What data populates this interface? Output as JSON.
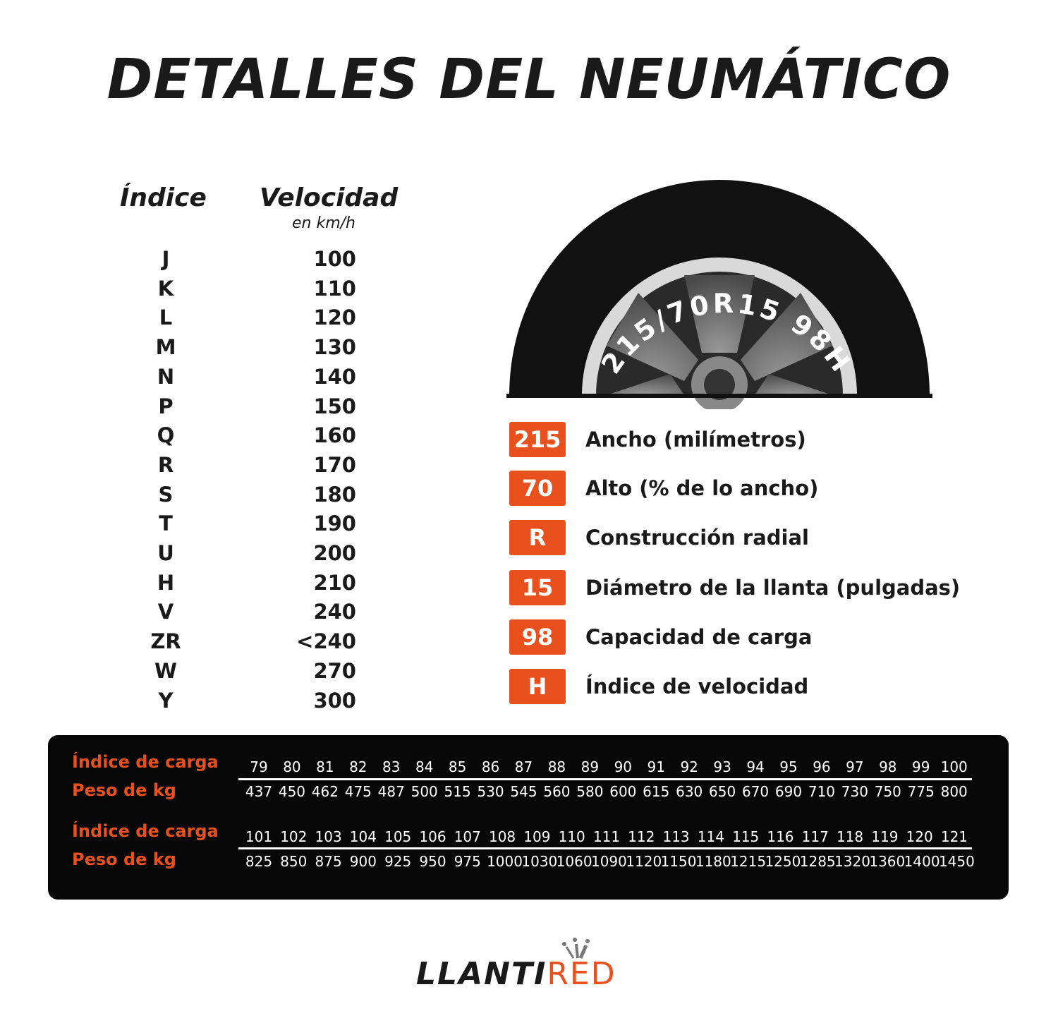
{
  "title": "DETALLES DEL NEUMÁTICO",
  "speed_table": {
    "header_index": "Índice",
    "header_speed": "Velocidad",
    "header_unit": "en km/h",
    "rows": [
      {
        "index": "J",
        "speed": "100"
      },
      {
        "index": "K",
        "speed": "110"
      },
      {
        "index": "L",
        "speed": "120"
      },
      {
        "index": "M",
        "speed": "130"
      },
      {
        "index": "N",
        "speed": "140"
      },
      {
        "index": "P",
        "speed": "150"
      },
      {
        "index": "Q",
        "speed": "160"
      },
      {
        "index": "R",
        "speed": "170"
      },
      {
        "index": "S",
        "speed": "180"
      },
      {
        "index": "T",
        "speed": "190"
      },
      {
        "index": "U",
        "speed": "200"
      },
      {
        "index": "H",
        "speed": "210"
      },
      {
        "index": "V",
        "speed": "240"
      },
      {
        "index": "ZR",
        "speed": "<240"
      },
      {
        "index": "W",
        "speed": "270"
      },
      {
        "index": "Y",
        "speed": "300"
      }
    ]
  },
  "tire": {
    "sidewall_text": "215/70R15 98H"
  },
  "legend": [
    {
      "badge": "215",
      "label": "Ancho (milímetros)"
    },
    {
      "badge": "70",
      "label": "Alto (% de lo ancho)"
    },
    {
      "badge": "R",
      "label": "Construcción radial"
    },
    {
      "badge": "15",
      "label": "Diámetro de la llanta (pulgadas)"
    },
    {
      "badge": "98",
      "label": "Capacidad de carga"
    },
    {
      "badge": "H",
      "label": "Índice de velocidad"
    }
  ],
  "load_table": {
    "label_index": "Índice de carga",
    "label_weight": "Peso de kg",
    "block1": {
      "index": [
        "79",
        "80",
        "81",
        "82",
        "83",
        "84",
        "85",
        "86",
        "87",
        "88",
        "89",
        "90",
        "91",
        "92",
        "93",
        "94",
        "95",
        "96",
        "97",
        "98",
        "99",
        "100"
      ],
      "weight": [
        "437",
        "450",
        "462",
        "475",
        "487",
        "500",
        "515",
        "530",
        "545",
        "560",
        "580",
        "600",
        "615",
        "630",
        "650",
        "670",
        "690",
        "710",
        "730",
        "750",
        "775",
        "800"
      ]
    },
    "block2": {
      "index": [
        "101",
        "102",
        "103",
        "104",
        "105",
        "106",
        "107",
        "108",
        "109",
        "110",
        "111",
        "112",
        "113",
        "114",
        "115",
        "116",
        "117",
        "118",
        "119",
        "120",
        "121"
      ],
      "weight": [
        "825",
        "850",
        "875",
        "900",
        "925",
        "950",
        "975",
        "1000",
        "1030",
        "1060",
        "1090",
        "1120",
        "1150",
        "1180",
        "1215",
        "1250",
        "1285",
        "1320",
        "1360",
        "1400",
        "1450"
      ]
    }
  },
  "logo": {
    "part1": "LLANTI",
    "part2": "RED"
  },
  "colors": {
    "accent": "#e8501e",
    "panel": "#070707",
    "text": "#1a1a1a"
  }
}
